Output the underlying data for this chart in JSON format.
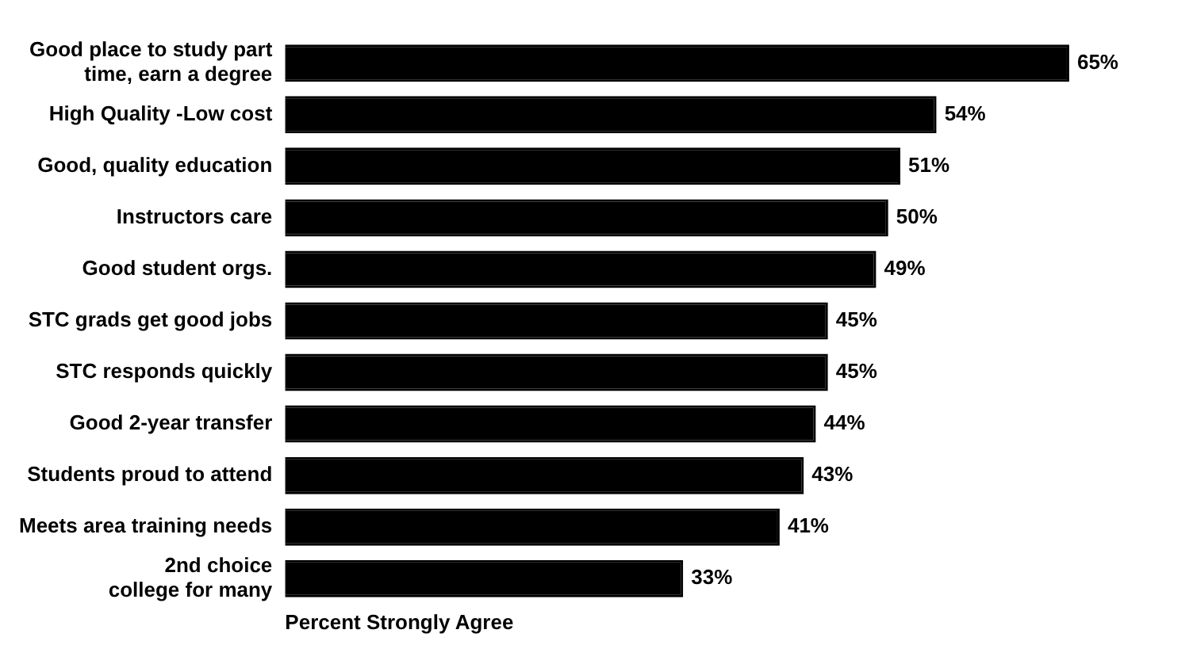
{
  "chart_data": {
    "type": "bar",
    "orientation": "horizontal",
    "xlabel": "Percent Strongly Agree",
    "categories": [
      "Good place to study part time, earn a degree",
      "High Quality -Low cost",
      "Good, quality education",
      "Instructors care",
      "Good student orgs.",
      "STC grads get good jobs",
      "STC responds quickly",
      "Good 2-year transfer",
      "Students proud to attend",
      "Meets area training needs",
      "2nd choice college for many"
    ],
    "values": [
      65,
      54,
      51,
      50,
      49,
      45,
      45,
      44,
      43,
      41,
      33
    ],
    "value_labels": [
      "65%",
      "54%",
      "51%",
      "50%",
      "49%",
      "45%",
      "45%",
      "44%",
      "43%",
      "41%",
      "33%"
    ],
    "color": "#000000",
    "legend": false,
    "grid": false
  }
}
